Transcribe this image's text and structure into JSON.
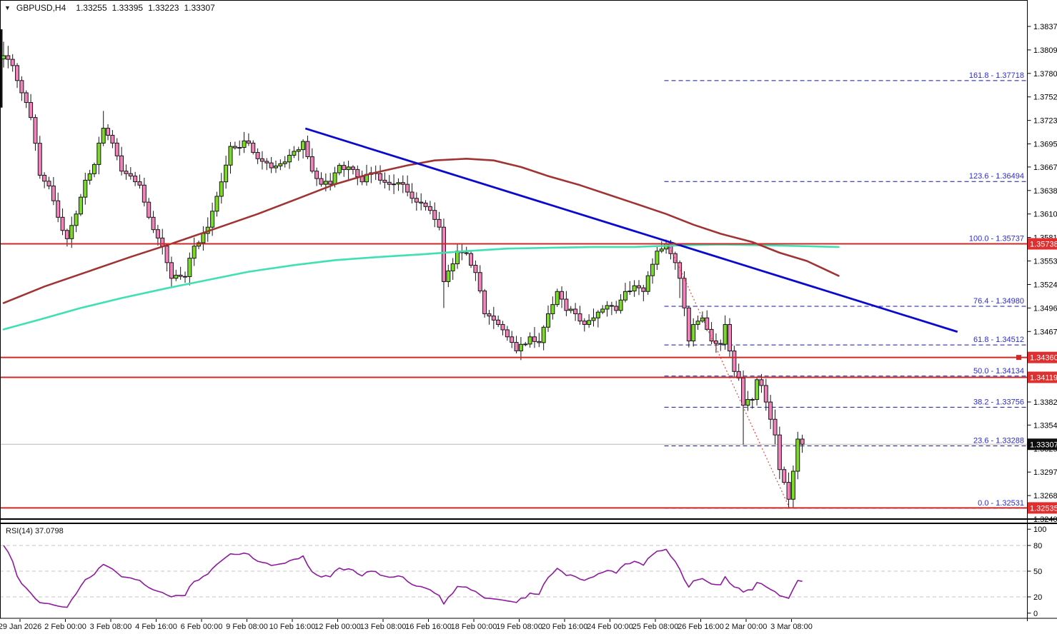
{
  "header": {
    "dropdown_icon": "▼",
    "symbol_period": "GBPUSD,H4",
    "open": "1.33255",
    "high": "1.33395",
    "low": "1.33223",
    "close": "1.33307"
  },
  "colors": {
    "background": "#ffffff",
    "axis_text": "#000000",
    "border": "#000000",
    "bull_candle": "#7CDB25",
    "bear_candle": "#F283BD",
    "candle_outline": "#151515",
    "red_level_line": "#CC2A2A",
    "badge_red_bg": "#E02F2F",
    "badge_black_bg": "#0d0d0d",
    "badge_text": "#ffffff",
    "fib_dash_line": "#16168F",
    "fib_label_text": "#2B2BDD",
    "trendline_blue": "#0A0ACF",
    "ma_brown": "#A03434",
    "ma_teal": "#3FE0B2",
    "fib_baseline_red": "#E04848",
    "rsi_line": "#8E1A9E",
    "rsi_grid": "#C4C4C4",
    "bid_price_line": "#BBBBBB",
    "date_text": "#111111"
  },
  "chart_data": {
    "type": "candlestick",
    "symbol": "GBPUSD",
    "timeframe": "H4",
    "title": "GBPUSD,H4  1.33255 1.33395 1.33223 1.33307",
    "price_axis": {
      "max": 1.38375,
      "min": 1.324,
      "ticks": [
        "1.38375",
        "1.38090",
        "1.37805",
        "1.37520",
        "1.37235",
        "1.36950",
        "1.36670",
        "1.36385",
        "1.36100",
        "1.35815",
        "1.35530",
        "1.35245",
        "1.34960",
        "1.34675",
        "1.34390",
        "1.34105",
        "1.33820",
        "1.33540",
        "1.33255",
        "1.32970",
        "1.32685",
        "1.32400"
      ]
    },
    "time_axis": {
      "labels": [
        "29 Jan 2026",
        "2 Feb 00:00",
        "3 Feb 08:00",
        "4 Feb 16:00",
        "6 Feb 00:00",
        "9 Feb 08:00",
        "10 Feb 16:00",
        "12 Feb 00:00",
        "13 Feb 08:00",
        "16 Feb 16:00",
        "18 Feb 00:00",
        "19 Feb 08:00",
        "20 Feb 16:00",
        "24 Feb 00:00",
        "25 Feb 08:00",
        "26 Feb 16:00",
        "2 Mar 00:00",
        "3 Mar 08:00"
      ]
    },
    "bars_count": 177,
    "close_path_waypoints": [
      [
        -30,
        1.3745
      ],
      [
        -22,
        1.3762
      ],
      [
        -14,
        1.3775
      ],
      [
        -7,
        1.379
      ],
      [
        -2,
        1.3797
      ],
      [
        0,
        1.3802
      ],
      [
        2,
        1.379
      ],
      [
        4,
        1.3757
      ],
      [
        6,
        1.3727
      ],
      [
        8,
        1.3657
      ],
      [
        10,
        1.3644
      ],
      [
        12,
        1.3606
      ],
      [
        14,
        1.358
      ],
      [
        16,
        1.361
      ],
      [
        18,
        1.3651
      ],
      [
        20,
        1.367
      ],
      [
        22,
        1.3714
      ],
      [
        24,
        1.3696
      ],
      [
        26,
        1.3662
      ],
      [
        28,
        1.3656
      ],
      [
        30,
        1.3645
      ],
      [
        33,
        1.3591
      ],
      [
        35,
        1.3571
      ],
      [
        37,
        1.3532
      ],
      [
        40,
        1.3534
      ],
      [
        42,
        1.3571
      ],
      [
        45,
        1.3594
      ],
      [
        48,
        1.3649
      ],
      [
        50,
        1.3692
      ],
      [
        54,
        1.3696
      ],
      [
        56,
        1.3677
      ],
      [
        59,
        1.3666
      ],
      [
        61,
        1.3671
      ],
      [
        64,
        1.3686
      ],
      [
        66,
        1.3698
      ],
      [
        68,
        1.3662
      ],
      [
        70,
        1.3646
      ],
      [
        72,
        1.3646
      ],
      [
        74,
        1.3669
      ],
      [
        77,
        1.3664
      ],
      [
        79,
        1.3649
      ],
      [
        81,
        1.366
      ],
      [
        83,
        1.3651
      ],
      [
        85,
        1.3646
      ],
      [
        88,
        1.3646
      ],
      [
        90,
        1.3629
      ],
      [
        93,
        1.3619
      ],
      [
        96,
        1.3594
      ],
      [
        97,
        1.3528
      ],
      [
        98,
        1.3541
      ],
      [
        100,
        1.3565
      ],
      [
        102,
        1.3562
      ],
      [
        104,
        1.3539
      ],
      [
        106,
        1.3489
      ],
      [
        109,
        1.3476
      ],
      [
        111,
        1.3461
      ],
      [
        113,
        1.3444
      ],
      [
        116,
        1.3461
      ],
      [
        118,
        1.3454
      ],
      [
        120,
        1.3489
      ],
      [
        122,
        1.3516
      ],
      [
        124,
        1.3493
      ],
      [
        126,
        1.3489
      ],
      [
        128,
        1.3476
      ],
      [
        130,
        1.3484
      ],
      [
        133,
        1.3499
      ],
      [
        135,
        1.3493
      ],
      [
        137,
        1.3516
      ],
      [
        139,
        1.3523
      ],
      [
        141,
        1.3516
      ],
      [
        143,
        1.3549
      ],
      [
        144,
        1.3565
      ],
      [
        146,
        1.3574
      ],
      [
        148,
        1.3551
      ],
      [
        149,
        1.3532
      ],
      [
        151,
        1.3456
      ],
      [
        152,
        1.3476
      ],
      [
        154,
        1.3484
      ],
      [
        155,
        1.347
      ],
      [
        156,
        1.3456
      ],
      [
        158,
        1.3452
      ],
      [
        159,
        1.3476
      ],
      [
        161,
        1.3419
      ],
      [
        162,
        1.3411
      ],
      [
        163,
        1.3378
      ],
      [
        165,
        1.3385
      ],
      [
        166,
        1.3409
      ],
      [
        167,
        1.3402
      ],
      [
        169,
        1.3361
      ],
      [
        170,
        1.3342
      ],
      [
        171,
        1.33
      ],
      [
        173,
        1.3264
      ],
      [
        174,
        1.3298
      ],
      [
        175,
        1.3337
      ],
      [
        176,
        1.33307
      ]
    ],
    "bar_overrides": {
      "0": {
        "high": 1.3819
      },
      "22": {
        "high": 1.3735
      },
      "97": {
        "low": 1.3496
      },
      "145": {
        "high": 1.3577
      },
      "146": {
        "high": 1.3579
      },
      "149": {
        "low": 1.3508
      },
      "163": {
        "low": 1.333
      },
      "173": {
        "low": 1.32531
      },
      "176": {
        "close": 1.33307
      }
    },
    "clipped_partial_bar": {
      "price_top": 1.3834,
      "price_bottom": 1.3739
    },
    "horizontal_lines": [
      {
        "price": 1.35738,
        "badge": "1.35738",
        "handle": false
      },
      {
        "price": 1.3436,
        "badge": "1.34360",
        "handle": true
      },
      {
        "price": 1.34119,
        "badge": "1.34119",
        "handle": false
      },
      {
        "price": 1.32535,
        "badge": "1.32535",
        "handle": false
      }
    ],
    "current_price": {
      "value": 1.33307,
      "badge": "1.33307"
    },
    "fibonacci": {
      "baseline": {
        "from_bar": 146.5,
        "from_price": 1.35737,
        "to_bar": 173.2,
        "to_price": 1.32531
      },
      "start_bar": 145.6,
      "levels": [
        {
          "label": "161.8 - 1.37718",
          "price": 1.37718
        },
        {
          "label": "123.6 - 1.36494",
          "price": 1.36494
        },
        {
          "label": "100.0 - 1.35737",
          "price": 1.35737
        },
        {
          "label": "76.4 - 1.34980",
          "price": 1.3498
        },
        {
          "label": "61.8 - 1.34512",
          "price": 1.34512
        },
        {
          "label": "50.0 - 1.34134",
          "price": 1.34134
        },
        {
          "label": "38.2 - 1.33756",
          "price": 1.33756
        },
        {
          "label": "23.6 - 1.33288",
          "price": 1.33288
        },
        {
          "label": "0.0 - 1.32531",
          "price": 1.32531
        }
      ]
    },
    "trendline": {
      "from_bar": 66.5,
      "from_price": 1.37137,
      "to_bar": 210.2,
      "to_price": 1.34671
    },
    "ma_brown": [
      [
        0,
        1.3502
      ],
      [
        9,
        1.3522
      ],
      [
        18,
        1.3539
      ],
      [
        28,
        1.3558
      ],
      [
        37,
        1.3574
      ],
      [
        46,
        1.3591
      ],
      [
        56,
        1.361
      ],
      [
        65,
        1.3629
      ],
      [
        73,
        1.3646
      ],
      [
        81,
        1.3659
      ],
      [
        89,
        1.3669
      ],
      [
        95,
        1.3675
      ],
      [
        102,
        1.3677
      ],
      [
        108,
        1.3675
      ],
      [
        114,
        1.3667
      ],
      [
        120,
        1.3656
      ],
      [
        127,
        1.3645
      ],
      [
        133,
        1.3634
      ],
      [
        139,
        1.3623
      ],
      [
        146,
        1.361
      ],
      [
        152,
        1.3597
      ],
      [
        158,
        1.3586
      ],
      [
        165,
        1.3576
      ],
      [
        171,
        1.3563
      ],
      [
        177,
        1.3553
      ],
      [
        184,
        1.3535
      ]
    ],
    "ma_teal": [
      [
        0,
        1.347
      ],
      [
        8,
        1.3482
      ],
      [
        17,
        1.3496
      ],
      [
        26,
        1.3508
      ],
      [
        36,
        1.352
      ],
      [
        45,
        1.353
      ],
      [
        54,
        1.354
      ],
      [
        64,
        1.3548
      ],
      [
        73,
        1.3554
      ],
      [
        83,
        1.3558
      ],
      [
        92,
        1.3561
      ],
      [
        102,
        1.3565
      ],
      [
        111,
        1.3568
      ],
      [
        120,
        1.3569
      ],
      [
        130,
        1.357
      ],
      [
        139,
        1.357
      ],
      [
        149,
        1.3572
      ],
      [
        158,
        1.3573
      ],
      [
        168,
        1.3572
      ],
      [
        177,
        1.3571
      ],
      [
        184,
        1.357
      ]
    ],
    "rsi": {
      "label": "RSI(14)",
      "value": "37.0798",
      "period": 14,
      "axis_ticks": [
        "100",
        "80",
        "50",
        "20",
        "0"
      ],
      "grid_levels": [
        80,
        50,
        20
      ],
      "range": [
        0,
        100
      ]
    }
  }
}
